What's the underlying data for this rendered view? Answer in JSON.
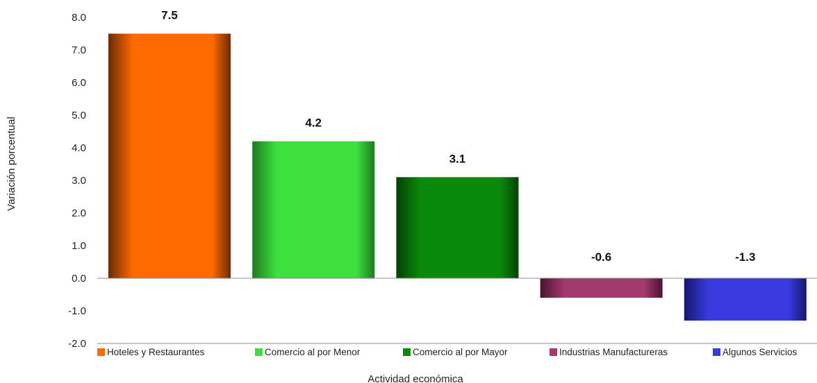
{
  "chart_data": {
    "type": "bar",
    "title": "",
    "xlabel": "Actividad económica",
    "ylabel": "Variación porcentual",
    "ylim": [
      -2.0,
      8.0
    ],
    "ytick_step": 1.0,
    "ytick_decimals": 1,
    "grid": false,
    "legend_position": "bottom",
    "categories": [
      "Hoteles y Restaurantes",
      "Comercio al por Menor",
      "Comercio al por Mayor",
      "Industrias Manufactureras",
      "Algunos Servicios"
    ],
    "values": [
      7.5,
      4.2,
      3.1,
      -0.6,
      -1.3
    ],
    "data_labels": [
      "7.5",
      "4.2",
      "3.1",
      "-0.6",
      "-1.3"
    ],
    "colors": [
      "#ff6a00",
      "#3ee03e",
      "#0a8a0a",
      "#a33a6e",
      "#3a3ae0"
    ],
    "dark_colors": [
      "#6a2a05",
      "#1f7a1f",
      "#034203",
      "#4a1330",
      "#161670"
    ]
  }
}
